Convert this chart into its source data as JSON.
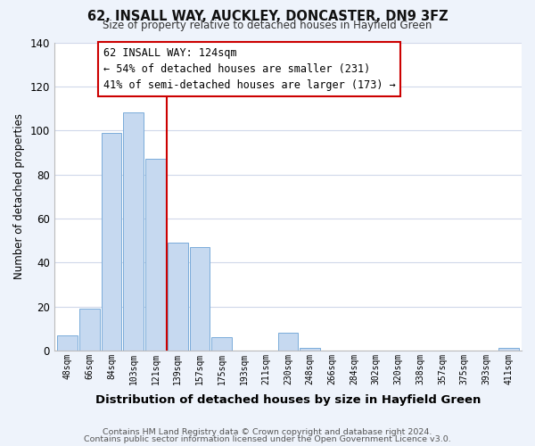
{
  "title": "62, INSALL WAY, AUCKLEY, DONCASTER, DN9 3FZ",
  "subtitle": "Size of property relative to detached houses in Hayfield Green",
  "xlabel": "Distribution of detached houses by size in Hayfield Green",
  "ylabel": "Number of detached properties",
  "bar_labels": [
    "48sqm",
    "66sqm",
    "84sqm",
    "103sqm",
    "121sqm",
    "139sqm",
    "157sqm",
    "175sqm",
    "193sqm",
    "211sqm",
    "230sqm",
    "248sqm",
    "266sqm",
    "284sqm",
    "302sqm",
    "320sqm",
    "338sqm",
    "357sqm",
    "375sqm",
    "393sqm",
    "411sqm"
  ],
  "bar_values": [
    7,
    19,
    99,
    108,
    87,
    49,
    47,
    6,
    0,
    0,
    8,
    1,
    0,
    0,
    0,
    0,
    0,
    0,
    0,
    0,
    1
  ],
  "bar_color": "#c6d9f0",
  "bar_edge_color": "#7aacda",
  "highlight_bar_index": 4,
  "highlight_edge_color": "#cc0000",
  "vline_x_index": 4,
  "ylim": [
    0,
    140
  ],
  "yticks": [
    0,
    20,
    40,
    60,
    80,
    100,
    120,
    140
  ],
  "annotation_title": "62 INSALL WAY: 124sqm",
  "annotation_line1": "← 54% of detached houses are smaller (231)",
  "annotation_line2": "41% of semi-detached houses are larger (173) →",
  "footnote1": "Contains HM Land Registry data © Crown copyright and database right 2024.",
  "footnote2": "Contains public sector information licensed under the Open Government Licence v3.0.",
  "background_color": "#eef3fb",
  "plot_bg_color": "#ffffff",
  "grid_color": "#d0d8ea"
}
